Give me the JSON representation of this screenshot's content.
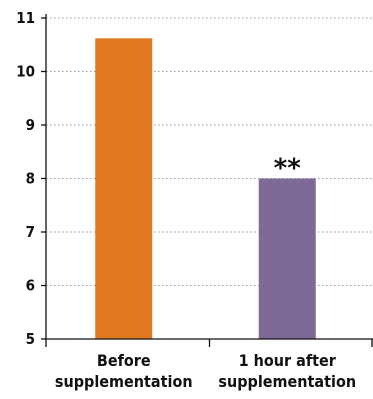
{
  "chart_data": {
    "type": "bar",
    "title": "",
    "xlabel": "",
    "ylabel": "",
    "categories": [
      "Before supplementation",
      "1 hour after supplementation"
    ],
    "category_lines": [
      [
        "Before",
        "supplementation"
      ],
      [
        "1 hour after",
        "supplementation"
      ]
    ],
    "values": [
      10.62,
      8.0
    ],
    "colors": [
      "#e0791f",
      "#7f6996"
    ],
    "ylim": [
      5,
      11
    ],
    "yticks": [
      "5",
      "6",
      "7",
      "8",
      "9",
      "10",
      "11"
    ],
    "grid": true,
    "annotations": [
      {
        "category_index": 1,
        "text": "**"
      }
    ]
  }
}
